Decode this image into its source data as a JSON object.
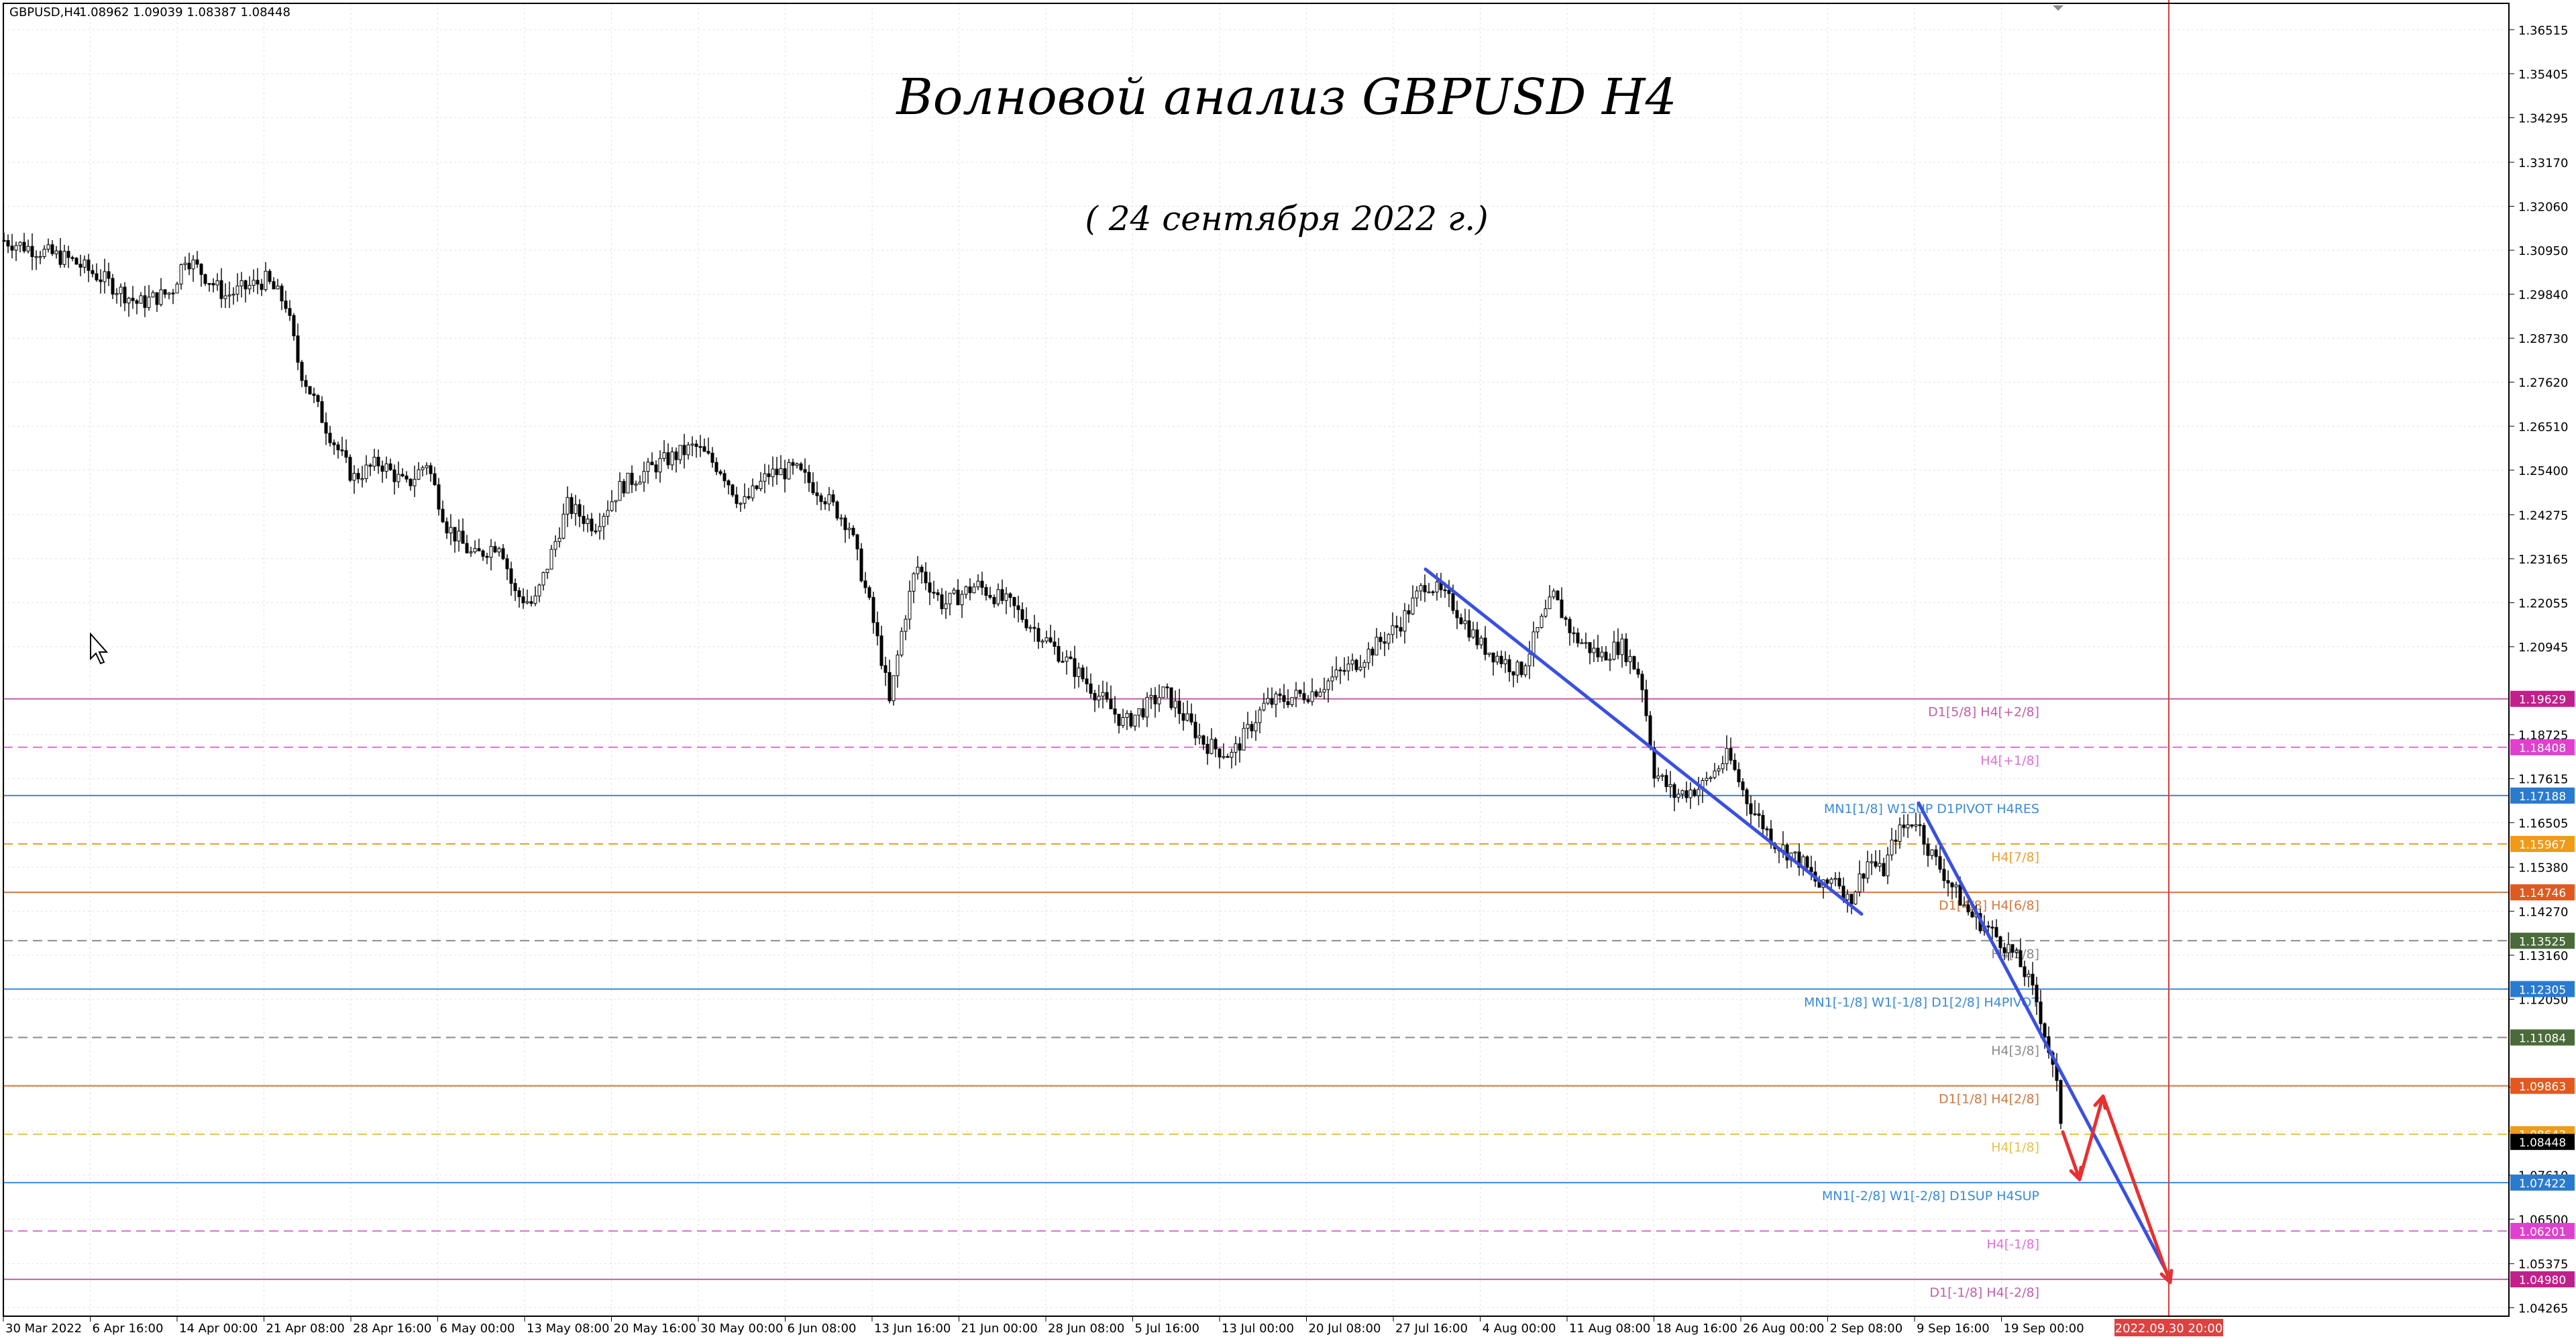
{
  "header": {
    "symbol_label": "GBPUSD,H4",
    "ohlc": "1.08962 1.09039 1.08387 1.08448"
  },
  "title": "Волновой анализ GBPUSD H4",
  "subtitle": "( 24 сентября 2022 г.)",
  "colors": {
    "background": "#ffffff",
    "grid": "#d9d9d9",
    "candle": "#000000",
    "trend_line": "#3a50e0",
    "forecast": "#e83030",
    "vline": "#d04040"
  },
  "chart_data": {
    "type": "candlestick",
    "symbol": "GBPUSD",
    "timeframe": "H4",
    "ylim": [
      1.0405,
      1.3718
    ],
    "y_ticks": [
      "1.36515",
      "1.35405",
      "1.34295",
      "1.33170",
      "1.32060",
      "1.30950",
      "1.29840",
      "1.28730",
      "1.27620",
      "1.26510",
      "1.25400",
      "1.24275",
      "1.23165",
      "1.22055",
      "1.20945",
      "1.18725",
      "1.17615",
      "1.16505",
      "1.15380",
      "1.14270",
      "1.13160",
      "1.12050",
      "1.09830",
      "1.08720",
      "1.07610",
      "1.06500",
      "1.05375",
      "1.04265"
    ],
    "x_ticks": [
      "30 Mar 2022",
      "6 Apr 16:00",
      "14 Apr 00:00",
      "21 Apr 08:00",
      "28 Apr 16:00",
      "6 May 00:00",
      "13 May 08:00",
      "20 May 16:00",
      "30 May 00:00",
      "6 Jun 08:00",
      "13 Jun 16:00",
      "21 Jun 00:00",
      "28 Jun 08:00",
      "5 Jul 16:00",
      "13 Jul 00:00",
      "20 Jul 08:00",
      "27 Jul 16:00",
      "4 Aug 00:00",
      "11 Aug 08:00",
      "18 Aug 16:00",
      "26 Aug 00:00",
      "2 Sep 08:00",
      "9 Sep 16:00",
      "19 Sep 00:00"
    ],
    "x_highlight": "2022.09.30 20:00",
    "price_path": [
      [
        1.312,
        0
      ],
      [
        1.307,
        100
      ],
      [
        1.302,
        150
      ],
      [
        1.296,
        200
      ],
      [
        1.299,
        250
      ],
      [
        1.308,
        270
      ],
      [
        1.298,
        330
      ],
      [
        1.302,
        390
      ],
      [
        1.296,
        420
      ],
      [
        1.28,
        440
      ],
      [
        1.265,
        480
      ],
      [
        1.252,
        520
      ],
      [
        1.256,
        560
      ],
      [
        1.25,
        600
      ],
      [
        1.256,
        630
      ],
      [
        1.24,
        660
      ],
      [
        1.232,
        700
      ],
      [
        1.236,
        740
      ],
      [
        1.223,
        760
      ],
      [
        1.22,
        790
      ],
      [
        1.23,
        810
      ],
      [
        1.245,
        840
      ],
      [
        1.24,
        880
      ],
      [
        1.25,
        920
      ],
      [
        1.256,
        980
      ],
      [
        1.26,
        1030
      ],
      [
        1.254,
        1070
      ],
      [
        1.245,
        1100
      ],
      [
        1.253,
        1140
      ],
      [
        1.254,
        1180
      ],
      [
        1.248,
        1220
      ],
      [
        1.24,
        1260
      ],
      [
        1.22,
        1290
      ],
      [
        1.205,
        1310
      ],
      [
        1.195,
        1320
      ],
      [
        1.215,
        1340
      ],
      [
        1.23,
        1360
      ],
      [
        1.22,
        1400
      ],
      [
        1.225,
        1450
      ],
      [
        1.22,
        1500
      ],
      [
        1.21,
        1560
      ],
      [
        1.203,
        1600
      ],
      [
        1.19,
        1670
      ],
      [
        1.198,
        1730
      ],
      [
        1.185,
        1790
      ],
      [
        1.182,
        1830
      ],
      [
        1.195,
        1880
      ],
      [
        1.198,
        1950
      ],
      [
        1.206,
        2020
      ],
      [
        1.215,
        2080
      ],
      [
        1.226,
        2120
      ],
      [
        1.22,
        2160
      ],
      [
        1.21,
        2200
      ],
      [
        1.203,
        2260
      ],
      [
        1.215,
        2290
      ],
      [
        1.222,
        2310
      ],
      [
        1.212,
        2340
      ],
      [
        1.207,
        2380
      ],
      [
        1.21,
        2410
      ],
      [
        1.202,
        2440
      ],
      [
        1.178,
        2460
      ],
      [
        1.172,
        2490
      ],
      [
        1.174,
        2530
      ],
      [
        1.182,
        2570
      ],
      [
        1.17,
        2600
      ],
      [
        1.16,
        2640
      ],
      [
        1.155,
        2680
      ],
      [
        1.148,
        2710
      ],
      [
        1.152,
        2730
      ],
      [
        1.145,
        2750
      ],
      [
        1.156,
        2780
      ],
      [
        1.152,
        2800
      ],
      [
        1.162,
        2820
      ],
      [
        1.166,
        2850
      ],
      [
        1.158,
        2870
      ],
      [
        1.15,
        2900
      ],
      [
        1.142,
        2930
      ],
      [
        1.138,
        2960
      ],
      [
        1.133,
        2990
      ],
      [
        1.128,
        3010
      ],
      [
        1.12,
        3030
      ],
      [
        1.11,
        3045
      ],
      [
        1.098,
        3060
      ],
      [
        1.085,
        3070
      ]
    ],
    "levels": [
      {
        "price": 1.19629,
        "label": "D1[5/8] H4[+2/8]",
        "tag": "1.19629",
        "color": "#c060a8",
        "tag_color": "#c0208a",
        "dashed": false
      },
      {
        "price": 1.18408,
        "label": "H4[+1/8]",
        "tag": "1.18408",
        "color": "#e070d8",
        "tag_color": "#e040d0",
        "dashed": true
      },
      {
        "price": 1.17188,
        "label": "MN1[1/8] W1SUP D1PIVOT H4RES",
        "tag": "1.17188",
        "color": "#3a8ad8",
        "tag_color": "#2a7ad0",
        "dashed": false
      },
      {
        "price": 1.15967,
        "label": "H4[7/8]",
        "tag": "1.15967",
        "color": "#e8a030",
        "tag_color": "#f09a18",
        "dashed": true
      },
      {
        "price": 1.14746,
        "label": "D1[4/8] H4[6/8]",
        "tag": "1.14746",
        "color": "#d07840",
        "tag_color": "#e05a20",
        "dashed": false
      },
      {
        "price": 1.13525,
        "label": "H4[5/8]",
        "tag": "1.13525",
        "color": "#8a8a8a",
        "tag_color": "#4a6a3a",
        "dashed": true
      },
      {
        "price": 1.12305,
        "label": "MN1[-1/8] W1[-1/8] D1[2/8] H4PIVOT",
        "tag": "1.12305",
        "color": "#3a8ad8",
        "tag_color": "#2a7ad0",
        "dashed": false
      },
      {
        "price": 1.11084,
        "label": "H4[3/8]",
        "tag": "1.11084",
        "color": "#8a8a8a",
        "tag_color": "#4a6a3a",
        "dashed": true
      },
      {
        "price": 1.09863,
        "label": "D1[1/8] H4[2/8]",
        "tag": "1.09863",
        "color": "#d07840",
        "tag_color": "#e05a20",
        "dashed": false
      },
      {
        "price": 1.08643,
        "label": "H4[1/8]",
        "tag": "1.08643",
        "color": "#e8c040",
        "tag_color": "#f09a18",
        "dashed": true
      },
      {
        "price": 1.07422,
        "label": "MN1[-2/8] W1[-2/8] D1SUP H4SUP",
        "tag": "1.07422",
        "color": "#3a8ad8",
        "tag_color": "#2a7ad0",
        "dashed": false
      },
      {
        "price": 1.06201,
        "label": "H4[-1/8]",
        "tag": "1.06201",
        "color": "#e070d8",
        "tag_color": "#e040d0",
        "dashed": true
      },
      {
        "price": 1.0498,
        "label": "D1[-1/8] H4[-2/8]",
        "tag": "1.04980",
        "color": "#c060a8",
        "tag_color": "#c0208a",
        "dashed": false
      }
    ],
    "current_price_tag": "1.08448",
    "current_price": 1.08448,
    "trend_lines": [
      {
        "from": [
          1.229,
          2125
        ],
        "to": [
          1.142,
          2775
        ],
        "color": "#3a50e0"
      },
      {
        "from": [
          1.17,
          2860
        ],
        "to": [
          1.05,
          3235
        ],
        "color": "#3a50e0"
      }
    ],
    "forecast_path": [
      [
        1.087,
        3075
      ],
      [
        1.075,
        3100
      ],
      [
        1.096,
        3135
      ],
      [
        1.049,
        3235
      ]
    ],
    "grid": true,
    "legend": "none"
  }
}
